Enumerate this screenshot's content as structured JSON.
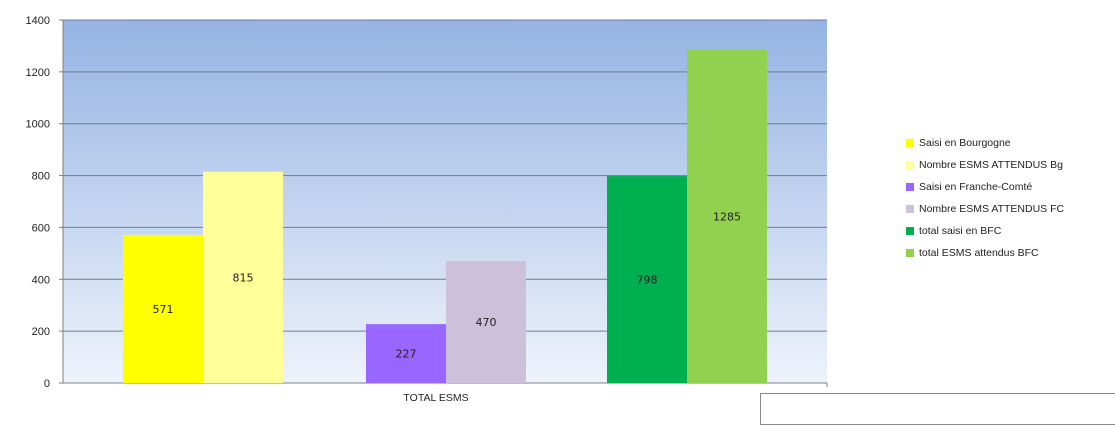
{
  "chart_data": {
    "type": "bar",
    "categories": [
      "TOTAL ESMS"
    ],
    "series": [
      {
        "name": "Saisi en Bourgogne",
        "values": [
          571
        ],
        "color": "#ffff00"
      },
      {
        "name": "Nombre ESMS ATTENDUS  Bg",
        "values": [
          815
        ],
        "color": "#ffff99"
      },
      {
        "name": "Saisi en Franche-Comté",
        "values": [
          227
        ],
        "color": "#9966ff"
      },
      {
        "name": "Nombre ESMS ATTENDUS  FC",
        "values": [
          470
        ],
        "color": "#ccc0da"
      },
      {
        "name": "total saisi en  BFC",
        "values": [
          798
        ],
        "color": "#00b050"
      },
      {
        "name": "total ESMS attendus BFC",
        "values": [
          1285
        ],
        "color": "#92d050"
      }
    ],
    "data_labels": [
      "571",
      "815",
      "227",
      "470",
      "798",
      "1285"
    ],
    "y_ticks": [
      "0",
      "200",
      "400",
      "600",
      "800",
      "1000",
      "1200",
      "1400"
    ],
    "ylim": [
      0,
      1400
    ],
    "grid": true,
    "legend_position": "right",
    "title": "",
    "xlabel": "",
    "ylabel": ""
  }
}
